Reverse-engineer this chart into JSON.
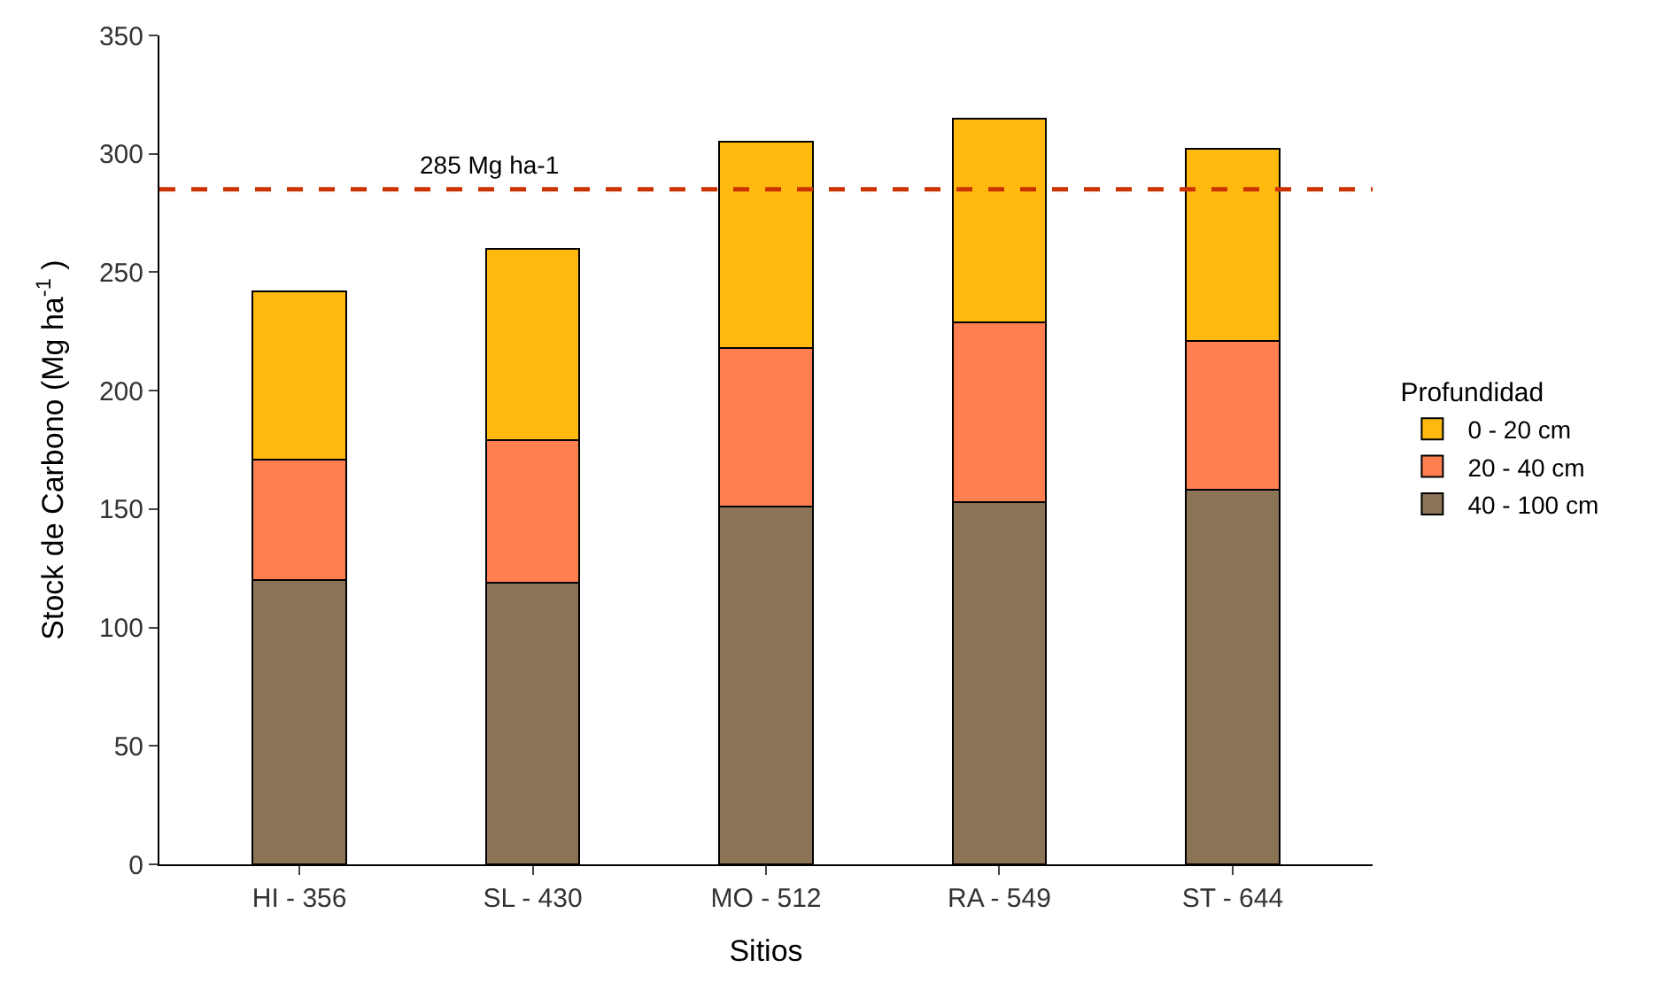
{
  "chart_data": {
    "type": "bar",
    "stacked": true,
    "xlabel": "Sitios",
    "ylabel": "Stock de Carbono (Mg ha$^{-1}$ )",
    "legend_title": "Profundidad",
    "legend": "right",
    "categories": [
      "HI - 356",
      "SL - 430",
      "MO - 512",
      "RA - 549",
      "ST - 644"
    ],
    "series": [
      {
        "name": "40 - 100 cm",
        "color": "#8b7355",
        "values": [
          120,
          119,
          151,
          153,
          158
        ]
      },
      {
        "name": "20 - 40 cm",
        "color": "#ff7f50",
        "values": [
          51,
          60,
          67,
          76,
          63
        ]
      },
      {
        "name": "0 - 20 cm",
        "color": "#ffb90f",
        "values": [
          71,
          81,
          87,
          86,
          81
        ]
      }
    ],
    "ylim": [
      0,
      350
    ],
    "yticks": [
      0,
      50,
      100,
      150,
      200,
      250,
      300,
      350
    ],
    "ref_lines": [
      {
        "axis": "y",
        "value": 285,
        "label": "285 Mg ha-1",
        "color": "#cc3300",
        "line_style": "dashed"
      }
    ]
  }
}
